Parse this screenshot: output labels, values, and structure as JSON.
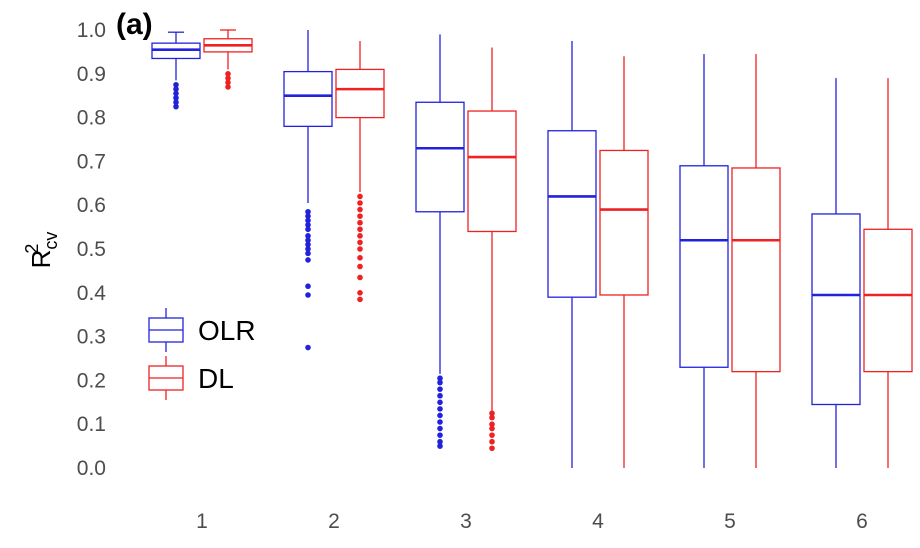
{
  "chart_data": {
    "type": "boxplot",
    "panel_label": "(a)",
    "xlabel": "",
    "ylabel": {
      "base": "R",
      "superscript": "2",
      "subscript": "cv"
    },
    "categories": [
      "1",
      "2",
      "3",
      "4",
      "5",
      "6"
    ],
    "ylim": [
      0.0,
      1.0
    ],
    "yticks": [
      "0.0",
      "0.1",
      "0.2",
      "0.3",
      "0.4",
      "0.5",
      "0.6",
      "0.7",
      "0.8",
      "0.9",
      "1.0"
    ],
    "grid": false,
    "legend": {
      "placement": "left-center",
      "entries": [
        "OLR",
        "DL"
      ]
    },
    "colors": {
      "OLR": "#2222dd",
      "DL": "#ee2222"
    },
    "series": [
      {
        "name": "OLR",
        "boxes": [
          {
            "category": "1",
            "whisker_low": 0.885,
            "q1": 0.935,
            "median": 0.955,
            "q3": 0.97,
            "whisker_high": 0.995,
            "outliers": [
              0.825,
              0.835,
              0.845,
              0.855,
              0.865,
              0.875
            ]
          },
          {
            "category": "2",
            "whisker_low": 0.605,
            "q1": 0.78,
            "median": 0.85,
            "q3": 0.905,
            "whisker_high": 1.0,
            "outliers": [
              0.275,
              0.395,
              0.415,
              0.475,
              0.49,
              0.5,
              0.51,
              0.52,
              0.53,
              0.545,
              0.555,
              0.565,
              0.575,
              0.585
            ]
          },
          {
            "category": "3",
            "whisker_low": 0.215,
            "q1": 0.585,
            "median": 0.73,
            "q3": 0.835,
            "whisker_high": 0.99,
            "outliers": [
              0.05,
              0.06,
              0.075,
              0.09,
              0.105,
              0.12,
              0.135,
              0.15,
              0.165,
              0.18,
              0.195,
              0.205
            ]
          },
          {
            "category": "4",
            "whisker_low": 0.0,
            "q1": 0.39,
            "median": 0.62,
            "q3": 0.77,
            "whisker_high": 0.975
          },
          {
            "category": "5",
            "whisker_low": 0.0,
            "q1": 0.23,
            "median": 0.52,
            "q3": 0.69,
            "whisker_high": 0.945
          },
          {
            "category": "6",
            "whisker_low": 0.0,
            "q1": 0.145,
            "median": 0.395,
            "q3": 0.58,
            "whisker_high": 0.89
          }
        ]
      },
      {
        "name": "DL",
        "boxes": [
          {
            "category": "1",
            "whisker_low": 0.91,
            "q1": 0.95,
            "median": 0.965,
            "q3": 0.98,
            "whisker_high": 1.0,
            "outliers": [
              0.87,
              0.88,
              0.89,
              0.9
            ]
          },
          {
            "category": "2",
            "whisker_low": 0.63,
            "q1": 0.8,
            "median": 0.865,
            "q3": 0.91,
            "whisker_high": 0.975,
            "outliers": [
              0.385,
              0.4,
              0.435,
              0.46,
              0.48,
              0.5,
              0.515,
              0.53,
              0.545,
              0.56,
              0.575,
              0.59,
              0.605,
              0.62
            ]
          },
          {
            "category": "3",
            "whisker_low": 0.13,
            "q1": 0.54,
            "median": 0.71,
            "q3": 0.815,
            "whisker_high": 0.96,
            "outliers": [
              0.045,
              0.06,
              0.075,
              0.09,
              0.1,
              0.115,
              0.125
            ]
          },
          {
            "category": "4",
            "whisker_low": 0.0,
            "q1": 0.395,
            "median": 0.59,
            "q3": 0.725,
            "whisker_high": 0.94
          },
          {
            "category": "5",
            "whisker_low": 0.0,
            "q1": 0.22,
            "median": 0.52,
            "q3": 0.685,
            "whisker_high": 0.945
          },
          {
            "category": "6",
            "whisker_low": 0.0,
            "q1": 0.22,
            "median": 0.395,
            "q3": 0.545,
            "whisker_high": 0.89
          }
        ]
      }
    ]
  }
}
